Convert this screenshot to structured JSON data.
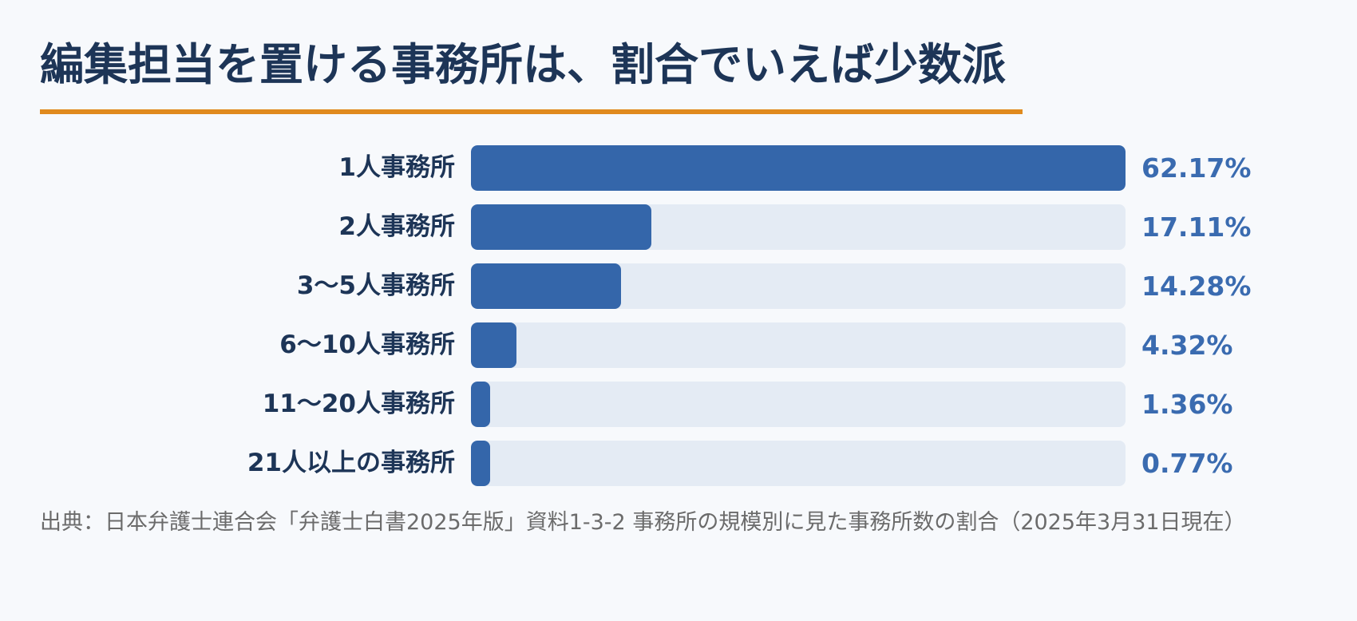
{
  "title": "編集担当を置ける事務所は、割合でいえば少数派",
  "colors": {
    "title": "#1d3557",
    "accent_rule": "#e08a1e",
    "bar": "#3466aa",
    "track": "#e4ebf4",
    "value_text": "#3a6bb0",
    "source_text": "#6b6b6b"
  },
  "chart_data": {
    "type": "bar",
    "orientation": "horizontal",
    "categories": [
      "1人事務所",
      "2人事務所",
      "3〜5人事務所",
      "6〜10人事務所",
      "11〜20人事務所",
      "21人以上の事務所"
    ],
    "values": [
      62.17,
      17.11,
      14.28,
      4.32,
      1.36,
      0.77
    ],
    "value_labels": [
      "62.17%",
      "17.11%",
      "14.28%",
      "4.32%",
      "1.36%",
      "0.77%"
    ],
    "title": "編集担当を置ける事務所は、割合でいえば少数派",
    "xlabel": "",
    "ylabel": "",
    "grid": false,
    "legend": "none"
  },
  "source": "出典：日本弁護士連合会「弁護士白書2025年版」資料1-3-2 事務所の規模別に見た事務所数の割合（2025年3月31日現在）"
}
